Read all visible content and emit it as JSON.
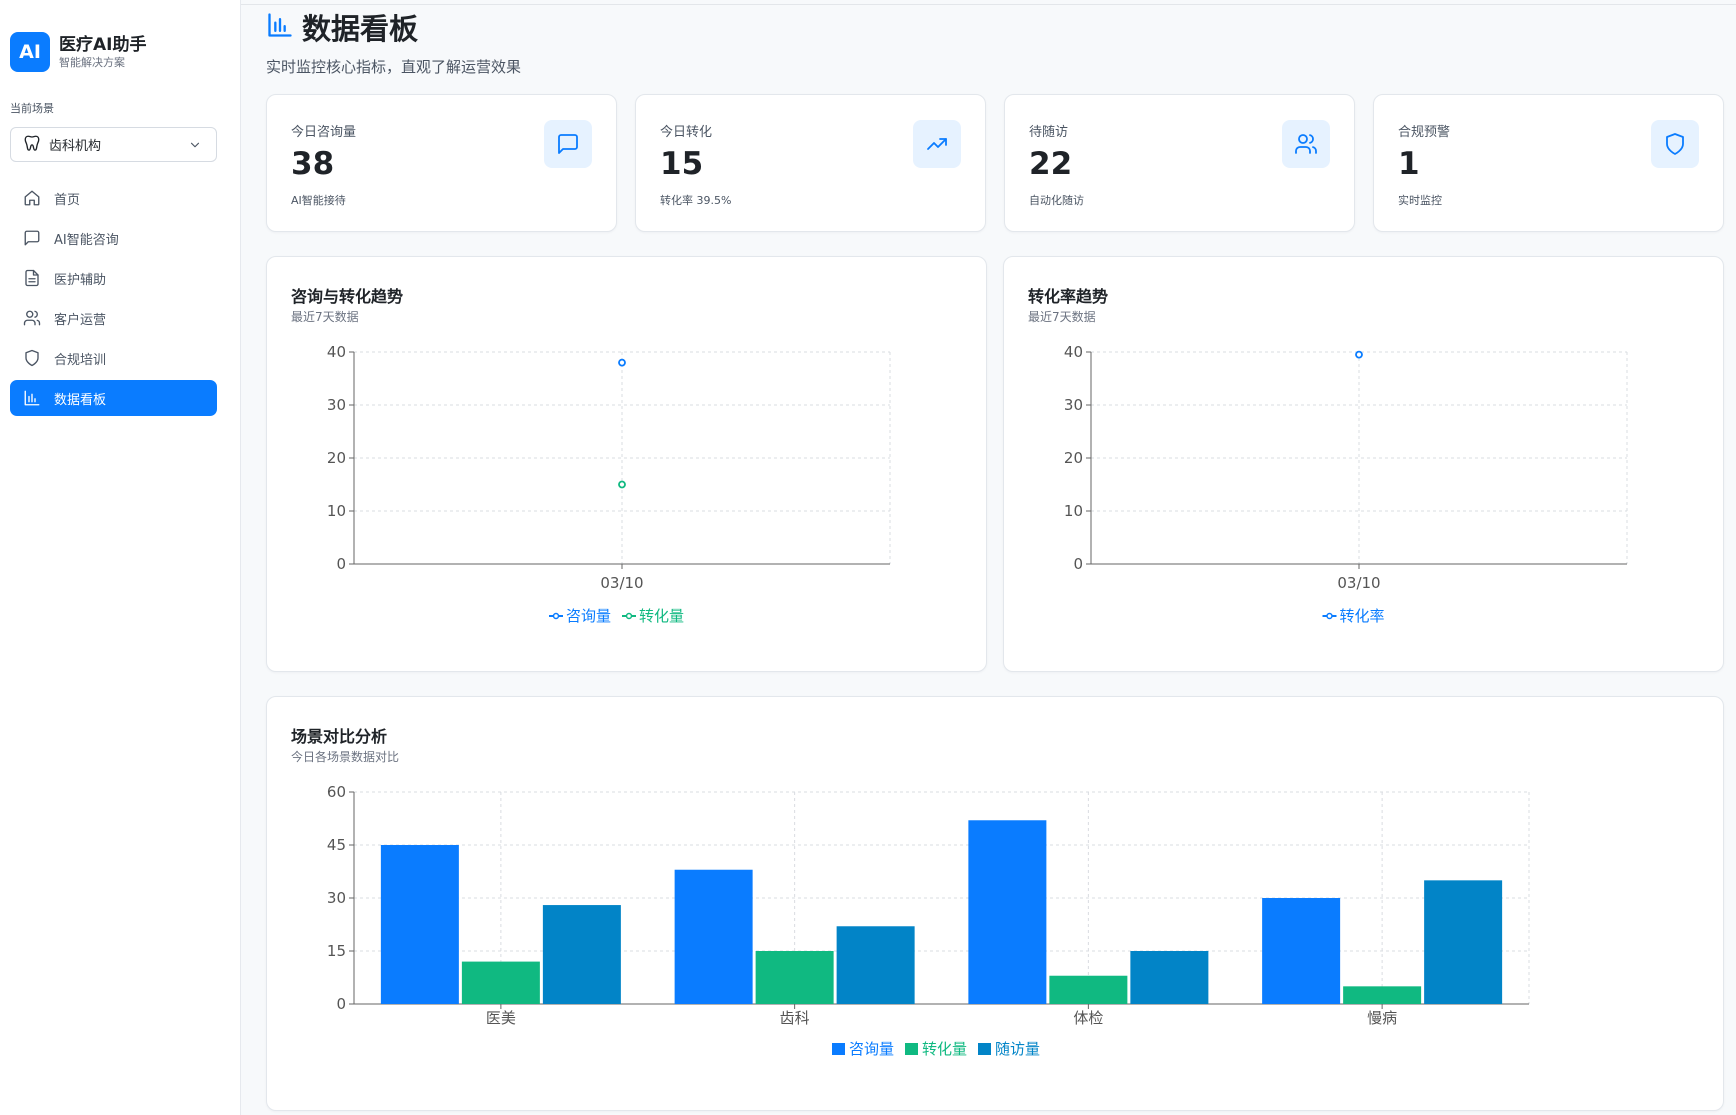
{
  "sidebar": {
    "brand_logo": "AI",
    "brand_title": "医疗AI助手",
    "brand_subtitle": "智能解决方案",
    "scene_label": "当前场景",
    "scene_value": "齿科机构",
    "nav": [
      {
        "label": "首页",
        "icon": "home-icon"
      },
      {
        "label": "AI智能咨询",
        "icon": "chat-icon"
      },
      {
        "label": "医护辅助",
        "icon": "document-icon"
      },
      {
        "label": "客户运营",
        "icon": "users-icon"
      },
      {
        "label": "合规培训",
        "icon": "shield-icon"
      },
      {
        "label": "数据看板",
        "icon": "bar-chart-icon",
        "active": true
      }
    ]
  },
  "header": {
    "title": "数据看板",
    "subtitle": "实时监控核心指标，直观了解运营效果"
  },
  "stats": [
    {
      "label": "今日咨询量",
      "value": "38",
      "sub": "AI智能接待",
      "icon": "chat-icon"
    },
    {
      "label": "今日转化",
      "value": "15",
      "sub": "转化率 39.5%",
      "icon": "trending-up-icon"
    },
    {
      "label": "待随访",
      "value": "22",
      "sub": "自动化随访",
      "icon": "users-icon"
    },
    {
      "label": "合规预警",
      "value": "1",
      "sub": "实时监控",
      "icon": "shield-icon"
    }
  ],
  "colors": {
    "primary": "#0a7cff",
    "green": "#10b981",
    "teal": "#0284c7",
    "icon_bg": "#e6f2ff"
  },
  "chart_data": [
    {
      "type": "line",
      "title": "咨询与转化趋势",
      "subtitle": "最近7天数据",
      "x": [
        "03/10"
      ],
      "ylim": [
        0,
        40
      ],
      "yticks": [
        0,
        10,
        20,
        30,
        40
      ],
      "grid": true,
      "legend": "bottom",
      "series": [
        {
          "name": "咨询量",
          "values": [
            38
          ],
          "color": "#0a7cff"
        },
        {
          "name": "转化量",
          "values": [
            15
          ],
          "color": "#10b981"
        }
      ]
    },
    {
      "type": "line",
      "title": "转化率趋势",
      "subtitle": "最近7天数据",
      "x": [
        "03/10"
      ],
      "ylim": [
        0,
        40
      ],
      "yticks": [
        0,
        10,
        20,
        30,
        40
      ],
      "grid": true,
      "legend": "bottom",
      "series": [
        {
          "name": "转化率",
          "values": [
            39.5
          ],
          "color": "#0a7cff"
        }
      ]
    },
    {
      "type": "bar",
      "title": "场景对比分析",
      "subtitle": "今日各场景数据对比",
      "categories": [
        "医美",
        "齿科",
        "体检",
        "慢病"
      ],
      "ylim": [
        0,
        60
      ],
      "yticks": [
        0,
        15,
        30,
        45,
        60
      ],
      "grid": true,
      "legend": "bottom",
      "series": [
        {
          "name": "咨询量",
          "values": [
            45,
            38,
            52,
            30
          ],
          "color": "#0a7cff"
        },
        {
          "name": "转化量",
          "values": [
            12,
            15,
            8,
            5
          ],
          "color": "#10b981"
        },
        {
          "name": "随访量",
          "values": [
            28,
            22,
            15,
            35
          ],
          "color": "#0284c7"
        }
      ]
    }
  ]
}
